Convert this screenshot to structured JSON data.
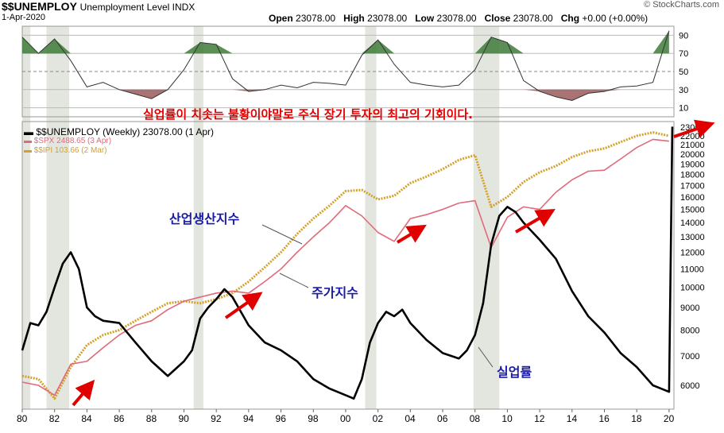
{
  "header": {
    "symbol": "$$UNEMPLOY",
    "description": "Unemployment Level INDX",
    "date": "1-Apr-2020",
    "open_label": "Open",
    "open": "23078.00",
    "high_label": "High",
    "high": "23078.00",
    "low_label": "Low",
    "low": "23078.00",
    "close_label": "Close",
    "close": "23078.00",
    "chg_label": "Chg",
    "chg": "+0.00 (+0.00%)",
    "brand": "© StockCharts.com"
  },
  "legend": {
    "unemploy": "$$UNEMPLOY (Weekly) 23078.00 (1 Apr)",
    "spx": "$SPX 2488.65 (3 Apr)",
    "ipi": "$$IPI 103.66 (2 Mar)"
  },
  "annotations": {
    "headline": "실업률이 치솟는 불황이야말로 주식 장기 투자의 최고의 기회이다.",
    "industrial": "산업생산지수",
    "stock": "주가지수",
    "unemployment": "실업률"
  },
  "colors": {
    "unemploy": "#000000",
    "spx": "#e06a7a",
    "ipi": "#d4a12a",
    "arrow": "#e00000",
    "oscillator_fill_high": "#3f7a3a",
    "oscillator_fill_low": "#9a5a5a",
    "recession_band": "#8f9a7a"
  },
  "chart_data": [
    {
      "type": "line",
      "panel": "oscillator",
      "ylim": [
        0,
        100
      ],
      "y_ticks": [
        10,
        30,
        50,
        70,
        90
      ],
      "x": [
        1980,
        1981,
        1982,
        1983,
        1984,
        1985,
        1986,
        1987,
        1988,
        1989,
        1990,
        1991,
        1992,
        1993,
        1994,
        1995,
        1996,
        1997,
        1998,
        1999,
        2000,
        2001,
        2002,
        2003,
        2004,
        2005,
        2006,
        2007,
        2008,
        2009,
        2010,
        2011,
        2012,
        2013,
        2014,
        2015,
        2016,
        2017,
        2018,
        2019,
        2020
      ],
      "values": [
        88,
        70,
        86,
        62,
        33,
        38,
        30,
        25,
        20,
        30,
        52,
        82,
        80,
        42,
        28,
        30,
        35,
        32,
        38,
        37,
        35,
        68,
        85,
        58,
        38,
        35,
        33,
        35,
        52,
        88,
        82,
        40,
        28,
        22,
        18,
        26,
        28,
        33,
        34,
        38,
        95
      ]
    },
    {
      "type": "line",
      "panel": "main",
      "y_ticks": [
        6000,
        7000,
        8000,
        9000,
        10000,
        11000,
        12000,
        13000,
        14000,
        15000,
        16000,
        17000,
        18000,
        19000,
        20000,
        21000,
        22000,
        23000
      ],
      "x_ticks": [
        "80",
        "82",
        "84",
        "86",
        "88",
        "90",
        "92",
        "94",
        "96",
        "98",
        "00",
        "02",
        "04",
        "06",
        "08",
        "10",
        "12",
        "14",
        "16",
        "18",
        "20"
      ],
      "series": [
        {
          "name": "$$UNEMPLOY (Weekly) 23078.00 (1 Apr)",
          "x": [
            1980,
            1980.5,
            1981,
            1981.5,
            1982,
            1982.5,
            1983,
            1983.5,
            1984,
            1984.5,
            1985,
            1986,
            1987,
            1988,
            1989,
            1990,
            1990.5,
            1991,
            1991.5,
            1992,
            1992.5,
            1993,
            1994,
            1995,
            1996,
            1997,
            1998,
            1999,
            2000,
            2000.5,
            2001,
            2001.5,
            2002,
            2002.5,
            2003,
            2003.5,
            2004,
            2005,
            2006,
            2007,
            2007.5,
            2008,
            2008.5,
            2009,
            2009.5,
            2010,
            2010.5,
            2011,
            2012,
            2013,
            2014,
            2015,
            2016,
            2017,
            2018,
            2019,
            2019.5,
            2020,
            2020.2
          ],
          "values": [
            7200,
            8300,
            8200,
            8800,
            10000,
            11300,
            12000,
            11000,
            9000,
            8600,
            8400,
            8300,
            7500,
            6800,
            6300,
            6800,
            7200,
            8500,
            9000,
            9400,
            9900,
            9500,
            8200,
            7500,
            7200,
            6800,
            6200,
            5900,
            5700,
            5600,
            6200,
            7500,
            8300,
            8800,
            8600,
            8900,
            8300,
            7600,
            7100,
            6900,
            7200,
            7800,
            9200,
            12500,
            14500,
            15200,
            14800,
            14000,
            12800,
            11600,
            9800,
            8600,
            7900,
            7100,
            6600,
            6000,
            5900,
            5800,
            23078
          ]
        },
        {
          "name": "$SPX 2488.65 (3 Apr)",
          "x": [
            1980,
            1981,
            1982,
            1983,
            1984,
            1985,
            1986,
            1987,
            1988,
            1989,
            1990,
            1991,
            1992,
            1993,
            1994,
            1995,
            1996,
            1997,
            1998,
            1999,
            2000,
            2001,
            2002,
            2003,
            2004,
            2005,
            2006,
            2007,
            2008,
            2009,
            2010,
            2011,
            2012,
            2013,
            2014,
            2015,
            2016,
            2017,
            2018,
            2019,
            2020
          ],
          "values": [
            6100,
            6000,
            5700,
            6700,
            6800,
            7300,
            7800,
            8200,
            8400,
            8900,
            9300,
            9500,
            9700,
            9800,
            9700,
            10300,
            11000,
            12000,
            13000,
            14000,
            15300,
            14500,
            13300,
            12700,
            14300,
            14600,
            15000,
            15500,
            15700,
            12300,
            14400,
            15200,
            15000,
            16400,
            17500,
            18300,
            18400,
            19500,
            20700,
            21600,
            21400
          ]
        },
        {
          "name": "$$IPI 103.66 (2 Mar)",
          "x": [
            1980,
            1981,
            1982,
            1983,
            1984,
            1985,
            1986,
            1987,
            1988,
            1989,
            1990,
            1991,
            1992,
            1993,
            1994,
            1995,
            1996,
            1997,
            1998,
            1999,
            2000,
            2001,
            2002,
            2003,
            2004,
            2005,
            2006,
            2007,
            2008,
            2009,
            2010,
            2011,
            2012,
            2013,
            2014,
            2015,
            2016,
            2017,
            2018,
            2019,
            2020
          ],
          "values": [
            6300,
            6200,
            5600,
            6600,
            7400,
            7800,
            8000,
            8400,
            8800,
            9200,
            9300,
            9200,
            9400,
            9700,
            10300,
            11100,
            12000,
            13200,
            14300,
            15300,
            16500,
            16600,
            15800,
            16100,
            17200,
            17800,
            18500,
            19400,
            19900,
            15200,
            16000,
            17300,
            18200,
            18800,
            19700,
            20300,
            20600,
            21300,
            22000,
            22400,
            22000
          ]
        }
      ]
    }
  ]
}
